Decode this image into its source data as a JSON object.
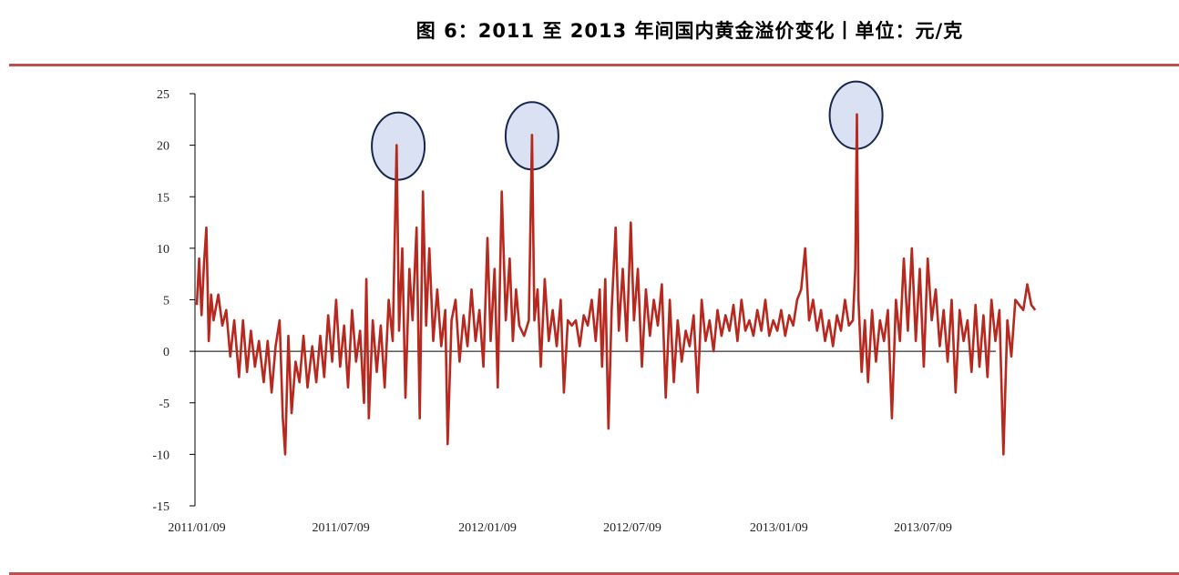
{
  "title": "图 6：2011 至 2013 年间国内黄金溢价变化丨单位：元/克",
  "colors": {
    "series": "#b7281e",
    "rule": "#c0504d",
    "highlight_fill": "#d9e1f2",
    "highlight_stroke": "#17264d",
    "axis": "#000000"
  },
  "chart_data": {
    "type": "line",
    "title": "图 6：2011 至 2013 年间国内黄金溢价变化丨单位：元/克",
    "xlabel": "",
    "ylabel": "",
    "x_ticks": [
      "2011/01/09",
      "2011/07/09",
      "2012/01/09",
      "2012/07/09",
      "2013/01/09",
      "2013/07/09"
    ],
    "x_range": [
      "2011/01/09",
      "2013/11/30"
    ],
    "ylim": [
      -15,
      25
    ],
    "y_ticks": [
      -15,
      -10,
      -5,
      0,
      5,
      10,
      15,
      20,
      25
    ],
    "grid": false,
    "highlights": [
      {
        "date": "2011/09/19",
        "value": 20
      },
      {
        "date": "2012/03/05",
        "value": 21
      },
      {
        "date": "2013/04/16",
        "value": 23
      }
    ],
    "series": [
      {
        "values": [
          [
            "2011/01/09",
            4.5
          ],
          [
            "2011/01/12",
            9.0
          ],
          [
            "2011/01/15",
            3.5
          ],
          [
            "2011/01/18",
            8.5
          ],
          [
            "2011/01/21",
            12.0
          ],
          [
            "2011/01/24",
            1.0
          ],
          [
            "2011/01/27",
            5.5
          ],
          [
            "2011/01/30",
            3.0
          ],
          [
            "2011/02/05",
            5.5
          ],
          [
            "2011/02/10",
            2.5
          ],
          [
            "2011/02/15",
            4.0
          ],
          [
            "2011/02/20",
            -0.5
          ],
          [
            "2011/02/25",
            3.0
          ],
          [
            "2011/03/03",
            -2.5
          ],
          [
            "2011/03/08",
            3.0
          ],
          [
            "2011/03/13",
            -2.0
          ],
          [
            "2011/03/18",
            2.0
          ],
          [
            "2011/03/23",
            -1.5
          ],
          [
            "2011/03/28",
            1.0
          ],
          [
            "2011/04/03",
            -3.0
          ],
          [
            "2011/04/08",
            1.0
          ],
          [
            "2011/04/13",
            -4.0
          ],
          [
            "2011/04/18",
            0.5
          ],
          [
            "2011/04/23",
            3.0
          ],
          [
            "2011/04/27",
            -6.5
          ],
          [
            "2011/04/30",
            -10.0
          ],
          [
            "2011/05/04",
            1.5
          ],
          [
            "2011/05/08",
            -6.0
          ],
          [
            "2011/05/13",
            -1.0
          ],
          [
            "2011/05/18",
            -3.0
          ],
          [
            "2011/05/23",
            1.5
          ],
          [
            "2011/05/28",
            -3.5
          ],
          [
            "2011/06/03",
            0.5
          ],
          [
            "2011/06/08",
            -3.0
          ],
          [
            "2011/06/13",
            1.5
          ],
          [
            "2011/06/18",
            -2.5
          ],
          [
            "2011/06/23",
            3.5
          ],
          [
            "2011/06/28",
            -1.0
          ],
          [
            "2011/07/03",
            5.0
          ],
          [
            "2011/07/08",
            -1.5
          ],
          [
            "2011/07/13",
            2.5
          ],
          [
            "2011/07/18",
            -3.5
          ],
          [
            "2011/07/23",
            4.0
          ],
          [
            "2011/07/28",
            -1.0
          ],
          [
            "2011/08/02",
            2.0
          ],
          [
            "2011/08/07",
            -5.0
          ],
          [
            "2011/08/10",
            7.0
          ],
          [
            "2011/08/13",
            -6.5
          ],
          [
            "2011/08/18",
            3.0
          ],
          [
            "2011/08/23",
            -2.0
          ],
          [
            "2011/08/28",
            2.5
          ],
          [
            "2011/09/02",
            -3.5
          ],
          [
            "2011/09/07",
            5.0
          ],
          [
            "2011/09/12",
            1.0
          ],
          [
            "2011/09/17",
            20.0
          ],
          [
            "2011/09/20",
            2.0
          ],
          [
            "2011/09/24",
            10.0
          ],
          [
            "2011/09/28",
            -4.5
          ],
          [
            "2011/10/03",
            8.0
          ],
          [
            "2011/10/07",
            3.0
          ],
          [
            "2011/10/12",
            12.0
          ],
          [
            "2011/10/16",
            -6.5
          ],
          [
            "2011/10/20",
            15.5
          ],
          [
            "2011/10/24",
            2.5
          ],
          [
            "2011/10/28",
            10.0
          ],
          [
            "2011/11/02",
            1.0
          ],
          [
            "2011/11/07",
            6.0
          ],
          [
            "2011/11/12",
            0.5
          ],
          [
            "2011/11/17",
            4.0
          ],
          [
            "2011/11/20",
            -9.0
          ],
          [
            "2011/11/25",
            3.0
          ],
          [
            "2011/11/30",
            5.0
          ],
          [
            "2011/12/05",
            -1.0
          ],
          [
            "2011/12/10",
            3.5
          ],
          [
            "2011/12/15",
            0.5
          ],
          [
            "2011/12/20",
            6.0
          ],
          [
            "2011/12/25",
            1.0
          ],
          [
            "2011/12/30",
            4.0
          ],
          [
            "2012/01/04",
            -1.5
          ],
          [
            "2012/01/09",
            11.0
          ],
          [
            "2012/01/13",
            1.0
          ],
          [
            "2012/01/18",
            8.0
          ],
          [
            "2012/01/22",
            -3.5
          ],
          [
            "2012/01/27",
            15.5
          ],
          [
            "2012/02/01",
            3.0
          ],
          [
            "2012/02/06",
            9.0
          ],
          [
            "2012/02/10",
            1.0
          ],
          [
            "2012/02/14",
            6.0
          ],
          [
            "2012/02/18",
            2.5
          ],
          [
            "2012/02/24",
            1.5
          ],
          [
            "2012/03/01",
            3.0
          ],
          [
            "2012/03/05",
            21.0
          ],
          [
            "2012/03/08",
            3.0
          ],
          [
            "2012/03/12",
            6.0
          ],
          [
            "2012/03/16",
            -1.5
          ],
          [
            "2012/03/21",
            7.0
          ],
          [
            "2012/03/26",
            1.0
          ],
          [
            "2012/03/31",
            4.0
          ],
          [
            "2012/04/05",
            0.5
          ],
          [
            "2012/04/10",
            5.0
          ],
          [
            "2012/04/14",
            -4.0
          ],
          [
            "2012/04/19",
            3.0
          ],
          [
            "2012/04/24",
            2.5
          ],
          [
            "2012/04/29",
            3.0
          ],
          [
            "2012/05/04",
            0.5
          ],
          [
            "2012/05/09",
            3.5
          ],
          [
            "2012/05/14",
            2.5
          ],
          [
            "2012/05/19",
            5.0
          ],
          [
            "2012/05/24",
            1.0
          ],
          [
            "2012/05/29",
            6.0
          ],
          [
            "2012/06/01",
            -1.5
          ],
          [
            "2012/06/05",
            7.0
          ],
          [
            "2012/06/09",
            -7.5
          ],
          [
            "2012/06/13",
            4.0
          ],
          [
            "2012/06/18",
            12.0
          ],
          [
            "2012/06/22",
            2.0
          ],
          [
            "2012/06/27",
            8.0
          ],
          [
            "2012/07/02",
            1.0
          ],
          [
            "2012/07/07",
            12.5
          ],
          [
            "2012/07/11",
            3.0
          ],
          [
            "2012/07/16",
            8.0
          ],
          [
            "2012/07/21",
            -1.5
          ],
          [
            "2012/07/26",
            6.0
          ],
          [
            "2012/07/31",
            1.5
          ],
          [
            "2012/08/05",
            5.0
          ],
          [
            "2012/08/10",
            2.5
          ],
          [
            "2012/08/15",
            6.5
          ],
          [
            "2012/08/20",
            -4.5
          ],
          [
            "2012/08/25",
            5.0
          ],
          [
            "2012/08/30",
            -3.0
          ],
          [
            "2012/09/04",
            3.0
          ],
          [
            "2012/09/09",
            -1.0
          ],
          [
            "2012/09/14",
            2.0
          ],
          [
            "2012/09/19",
            0.5
          ],
          [
            "2012/09/24",
            3.5
          ],
          [
            "2012/09/29",
            -4.0
          ],
          [
            "2012/10/04",
            5.0
          ],
          [
            "2012/10/09",
            1.0
          ],
          [
            "2012/10/14",
            3.0
          ],
          [
            "2012/10/19",
            0.0
          ],
          [
            "2012/10/24",
            4.0
          ],
          [
            "2012/10/29",
            1.5
          ],
          [
            "2012/11/03",
            3.5
          ],
          [
            "2012/11/08",
            2.0
          ],
          [
            "2012/11/13",
            4.5
          ],
          [
            "2012/11/18",
            1.0
          ],
          [
            "2012/11/23",
            5.0
          ],
          [
            "2012/11/28",
            2.0
          ],
          [
            "2012/12/03",
            3.0
          ],
          [
            "2012/12/08",
            1.5
          ],
          [
            "2012/12/13",
            4.0
          ],
          [
            "2012/12/18",
            2.0
          ],
          [
            "2012/12/23",
            5.0
          ],
          [
            "2012/12/28",
            1.5
          ],
          [
            "2013/01/02",
            3.0
          ],
          [
            "2013/01/07",
            2.0
          ],
          [
            "2013/01/12",
            4.0
          ],
          [
            "2013/01/17",
            1.5
          ],
          [
            "2013/01/22",
            3.5
          ],
          [
            "2013/01/27",
            2.5
          ],
          [
            "2013/02/01",
            5.0
          ],
          [
            "2013/02/06",
            6.0
          ],
          [
            "2013/02/11",
            10.0
          ],
          [
            "2013/02/16",
            3.0
          ],
          [
            "2013/02/21",
            5.0
          ],
          [
            "2013/02/26",
            2.0
          ],
          [
            "2013/03/03",
            4.0
          ],
          [
            "2013/03/08",
            1.0
          ],
          [
            "2013/03/13",
            3.0
          ],
          [
            "2013/03/18",
            0.5
          ],
          [
            "2013/03/23",
            3.5
          ],
          [
            "2013/03/28",
            2.0
          ],
          [
            "2013/04/02",
            5.0
          ],
          [
            "2013/04/07",
            2.5
          ],
          [
            "2013/04/12",
            3.0
          ],
          [
            "2013/04/15",
            8.0
          ],
          [
            "2013/04/17",
            23.0
          ],
          [
            "2013/04/19",
            5.0
          ],
          [
            "2013/04/23",
            -2.0
          ],
          [
            "2013/04/27",
            3.0
          ],
          [
            "2013/05/01",
            -3.0
          ],
          [
            "2013/05/06",
            4.0
          ],
          [
            "2013/05/11",
            -1.0
          ],
          [
            "2013/05/16",
            3.0
          ],
          [
            "2013/05/21",
            1.0
          ],
          [
            "2013/05/26",
            4.0
          ],
          [
            "2013/05/31",
            -6.5
          ],
          [
            "2013/06/05",
            5.0
          ],
          [
            "2013/06/10",
            1.0
          ],
          [
            "2013/06/15",
            9.0
          ],
          [
            "2013/06/20",
            2.0
          ],
          [
            "2013/06/25",
            10.0
          ],
          [
            "2013/06/30",
            1.0
          ],
          [
            "2013/07/05",
            8.0
          ],
          [
            "2013/07/10",
            -1.5
          ],
          [
            "2013/07/15",
            9.0
          ],
          [
            "2013/07/20",
            3.0
          ],
          [
            "2013/07/25",
            6.0
          ],
          [
            "2013/07/30",
            0.5
          ],
          [
            "2013/08/04",
            4.0
          ],
          [
            "2013/08/09",
            -1.0
          ],
          [
            "2013/08/14",
            5.0
          ],
          [
            "2013/08/19",
            -4.0
          ],
          [
            "2013/08/24",
            4.0
          ],
          [
            "2013/08/29",
            1.0
          ],
          [
            "2013/09/03",
            3.0
          ],
          [
            "2013/09/08",
            -2.0
          ],
          [
            "2013/09/13",
            4.5
          ],
          [
            "2013/09/18",
            -1.5
          ],
          [
            "2013/09/23",
            3.5
          ],
          [
            "2013/09/28",
            -2.5
          ],
          [
            "2013/10/03",
            5.0
          ],
          [
            "2013/10/08",
            1.0
          ],
          [
            "2013/10/13",
            4.0
          ],
          [
            "2013/10/18",
            -10.0
          ],
          [
            "2013/10/23",
            3.0
          ],
          [
            "2013/10/28",
            -0.5
          ],
          [
            "2013/11/02",
            5.0
          ],
          [
            "2013/11/07",
            4.5
          ],
          [
            "2013/11/12",
            4.0
          ],
          [
            "2013/11/17",
            6.5
          ],
          [
            "2013/11/22",
            4.5
          ],
          [
            "2013/11/27",
            4.0
          ]
        ]
      }
    ]
  }
}
